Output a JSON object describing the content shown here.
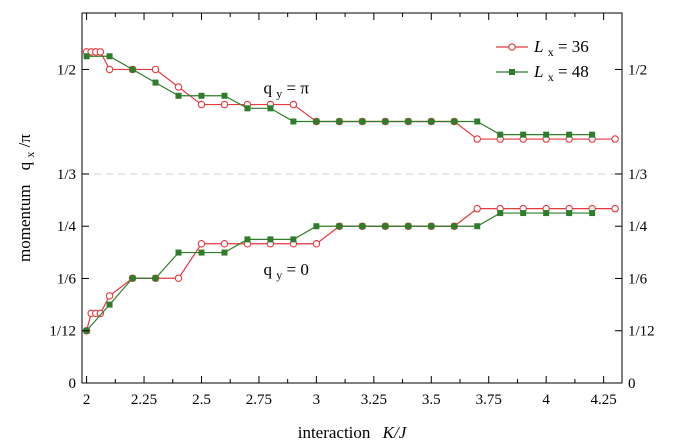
{
  "chart_data": {
    "type": "line",
    "xlabel_prefix": "interaction",
    "xlabel_var": "K/J",
    "ylabel_prefix": "momentum",
    "ylabel_var": "q",
    "ylabel_sub": "x",
    "ylabel_suffix": "/π",
    "xlim": [
      1.98,
      4.33
    ],
    "ylim": [
      0,
      0.59
    ],
    "x_ticks": [
      {
        "value": 2.0,
        "label": "2"
      },
      {
        "value": 2.25,
        "label": "2.25"
      },
      {
        "value": 2.5,
        "label": "2.5"
      },
      {
        "value": 2.75,
        "label": "2.75"
      },
      {
        "value": 3.0,
        "label": "3"
      },
      {
        "value": 3.25,
        "label": "3.25"
      },
      {
        "value": 3.5,
        "label": "3.5"
      },
      {
        "value": 3.75,
        "label": "3.75"
      },
      {
        "value": 4.0,
        "label": "4"
      },
      {
        "value": 4.25,
        "label": "4.25"
      }
    ],
    "y_ticks": [
      {
        "value": 0,
        "label": "0"
      },
      {
        "value": 0.08333,
        "label": "1/12"
      },
      {
        "value": 0.16667,
        "label": "1/6"
      },
      {
        "value": 0.25,
        "label": "1/4"
      },
      {
        "value": 0.33333,
        "label": "1/3"
      },
      {
        "value": 0.5,
        "label": "1/2"
      }
    ],
    "reference_line": {
      "value": 0.33333,
      "color": "#d0d0d0"
    },
    "annotations": [
      {
        "text_main": "q",
        "text_sub": "y",
        "text_rest": " = π",
        "x": 2.77,
        "y": 0.462
      },
      {
        "text_main": "q",
        "text_sub": "y",
        "text_rest": " = 0",
        "x": 2.77,
        "y": 0.172
      }
    ],
    "legend": {
      "position": "top-right",
      "entries": [
        {
          "var": "L",
          "sub": "x",
          "rest": " = 36",
          "series": 0
        },
        {
          "var": "L",
          "sub": "x",
          "rest": " = 48",
          "series": 1
        }
      ]
    },
    "series": [
      {
        "color": "#e8393f",
        "marker": "open-circle",
        "upper": {
          "x": [
            2.0,
            2.02,
            2.04,
            2.06,
            2.1,
            2.2,
            2.3,
            2.4,
            2.5,
            2.6,
            2.7,
            2.8,
            2.9,
            3.0,
            3.1,
            3.2,
            3.3,
            3.4,
            3.5,
            3.6,
            3.7,
            3.8,
            3.9,
            4.0,
            4.1,
            4.2,
            4.3
          ],
          "y": [
            0.528,
            0.528,
            0.528,
            0.528,
            0.5,
            0.5,
            0.5,
            0.472,
            0.444,
            0.444,
            0.444,
            0.444,
            0.444,
            0.417,
            0.417,
            0.417,
            0.417,
            0.417,
            0.417,
            0.417,
            0.389,
            0.389,
            0.389,
            0.389,
            0.389,
            0.389,
            0.389
          ]
        },
        "lower": {
          "x": [
            2.0,
            2.02,
            2.04,
            2.06,
            2.1,
            2.2,
            2.3,
            2.4,
            2.5,
            2.6,
            2.7,
            2.8,
            2.9,
            3.0,
            3.1,
            3.2,
            3.3,
            3.4,
            3.5,
            3.6,
            3.7,
            3.8,
            3.9,
            4.0,
            4.1,
            4.2,
            4.3
          ],
          "y": [
            0.0833,
            0.111,
            0.111,
            0.111,
            0.139,
            0.167,
            0.167,
            0.167,
            0.222,
            0.222,
            0.222,
            0.222,
            0.222,
            0.222,
            0.25,
            0.25,
            0.25,
            0.25,
            0.25,
            0.25,
            0.278,
            0.278,
            0.278,
            0.278,
            0.278,
            0.278,
            0.278
          ]
        }
      },
      {
        "color": "#2f7d2a",
        "marker": "filled-square",
        "upper": {
          "x": [
            2.0,
            2.1,
            2.2,
            2.3,
            2.4,
            2.5,
            2.6,
            2.7,
            2.8,
            2.9,
            3.0,
            3.1,
            3.2,
            3.3,
            3.4,
            3.5,
            3.6,
            3.7,
            3.8,
            3.9,
            4.0,
            4.1,
            4.2
          ],
          "y": [
            0.521,
            0.521,
            0.5,
            0.479,
            0.458,
            0.458,
            0.458,
            0.438,
            0.438,
            0.417,
            0.417,
            0.417,
            0.417,
            0.417,
            0.417,
            0.417,
            0.417,
            0.417,
            0.396,
            0.396,
            0.396,
            0.396,
            0.396
          ]
        },
        "lower": {
          "x": [
            2.0,
            2.1,
            2.2,
            2.3,
            2.4,
            2.5,
            2.6,
            2.7,
            2.8,
            2.9,
            3.0,
            3.1,
            3.2,
            3.3,
            3.4,
            3.5,
            3.6,
            3.7,
            3.8,
            3.9,
            4.0,
            4.1,
            4.2
          ],
          "y": [
            0.0833,
            0.125,
            0.167,
            0.167,
            0.208,
            0.208,
            0.208,
            0.229,
            0.229,
            0.229,
            0.25,
            0.25,
            0.25,
            0.25,
            0.25,
            0.25,
            0.25,
            0.25,
            0.271,
            0.271,
            0.271,
            0.271,
            0.271
          ]
        }
      }
    ]
  }
}
